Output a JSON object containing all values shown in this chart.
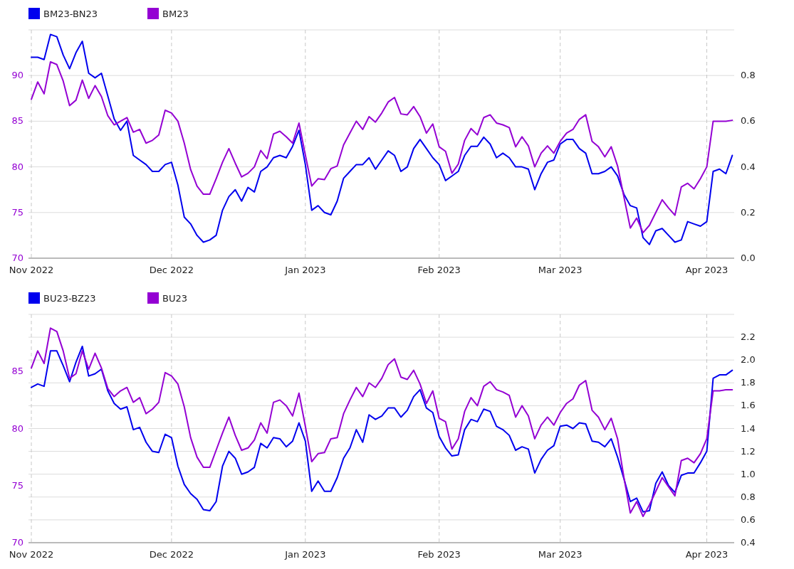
{
  "chart_data": [
    {
      "type": "line",
      "legend": "top left",
      "grid": true,
      "categories": [
        "Nov 2022",
        null,
        null,
        null,
        null,
        null,
        null,
        null,
        null,
        null,
        null,
        null,
        null,
        null,
        null,
        null,
        null,
        null,
        null,
        null,
        null,
        null,
        "Dec 2022",
        null,
        null,
        null,
        null,
        null,
        null,
        null,
        null,
        null,
        null,
        null,
        null,
        null,
        null,
        null,
        null,
        null,
        null,
        null,
        null,
        "Jan 2023",
        null,
        null,
        null,
        null,
        null,
        null,
        null,
        null,
        null,
        null,
        null,
        null,
        null,
        null,
        null,
        null,
        null,
        null,
        null,
        null,
        "Feb 2023",
        null,
        null,
        null,
        null,
        null,
        null,
        null,
        null,
        null,
        null,
        null,
        null,
        null,
        null,
        null,
        null,
        null,
        null,
        "Mar 2023",
        null,
        null,
        null,
        null,
        null,
        null,
        null,
        null,
        null,
        null,
        null,
        null,
        null,
        null,
        null,
        null,
        null,
        null,
        null,
        null,
        null,
        null,
        "Apr 2023",
        null,
        null,
        null,
        null
      ],
      "ylim": [
        70,
        95
      ],
      "yticks": [
        70,
        75,
        80,
        85,
        90
      ],
      "y2lim": [
        0,
        1
      ],
      "y2ticks": [
        {
          "value": 0,
          "label": "0.0"
        },
        {
          "value": 0.2,
          "label": "0.2"
        },
        {
          "value": 0.4,
          "label": "0.4"
        },
        {
          "value": 0.6,
          "label": "0.6"
        },
        {
          "value": 0.8,
          "label": "0.8"
        }
      ],
      "series": [
        {
          "name": "BM23-BN23",
          "color": "#0000ee",
          "axis": "y2",
          "values": [
            0.88,
            0.88,
            0.87,
            0.98,
            0.97,
            0.89,
            0.83,
            0.9,
            0.95,
            0.81,
            0.79,
            0.81,
            0.71,
            0.61,
            0.56,
            0.6,
            0.45,
            0.43,
            0.41,
            0.38,
            0.38,
            0.41,
            0.42,
            0.32,
            0.18,
            0.15,
            0.1,
            0.07,
            0.08,
            0.1,
            0.21,
            0.27,
            0.3,
            0.25,
            0.31,
            0.29,
            0.38,
            0.4,
            0.44,
            0.45,
            0.44,
            0.49,
            0.56,
            0.41,
            0.21,
            0.23,
            0.2,
            0.19,
            0.25,
            0.35,
            0.38,
            0.41,
            0.41,
            0.44,
            0.39,
            0.43,
            0.47,
            0.45,
            0.38,
            0.4,
            0.48,
            0.52,
            0.48,
            0.44,
            0.41,
            0.34,
            0.36,
            0.38,
            0.45,
            0.49,
            0.49,
            0.53,
            0.5,
            0.44,
            0.46,
            0.44,
            0.4,
            0.4,
            0.39,
            0.3,
            0.37,
            0.42,
            0.43,
            0.5,
            0.52,
            0.52,
            0.48,
            0.46,
            0.37,
            0.37,
            0.38,
            0.4,
            0.36,
            0.28,
            0.23,
            0.22,
            0.09,
            0.06,
            0.12,
            0.13,
            0.1,
            0.07,
            0.08,
            0.16,
            0.15,
            0.14,
            0.16,
            0.38,
            0.39,
            0.37,
            0.45
          ]
        },
        {
          "name": "BM23",
          "color": "#9400d3",
          "values": [
            87.4,
            89.3,
            88.0,
            91.5,
            91.2,
            89.4,
            86.7,
            87.3,
            89.5,
            87.5,
            88.9,
            87.7,
            85.6,
            84.6,
            85.0,
            85.4,
            83.8,
            84.1,
            82.6,
            82.9,
            83.5,
            86.2,
            85.9,
            85.0,
            82.6,
            79.7,
            77.9,
            77.0,
            77.0,
            78.7,
            80.5,
            82.0,
            80.4,
            78.9,
            79.3,
            80.0,
            81.8,
            80.9,
            83.6,
            83.9,
            83.3,
            82.6,
            84.8,
            81.3,
            77.9,
            78.7,
            78.6,
            79.8,
            80.1,
            82.4,
            83.7,
            85.0,
            84.1,
            85.5,
            84.9,
            85.9,
            87.1,
            87.6,
            85.8,
            85.7,
            86.6,
            85.5,
            83.7,
            84.7,
            82.2,
            81.7,
            79.3,
            80.3,
            82.9,
            84.2,
            83.5,
            85.4,
            85.7,
            84.8,
            84.6,
            84.3,
            82.2,
            83.3,
            82.3,
            80.0,
            81.5,
            82.3,
            81.5,
            82.8,
            83.7,
            84.1,
            85.2,
            85.7,
            82.8,
            82.2,
            81.1,
            82.2,
            80.1,
            76.7,
            73.3,
            74.4,
            72.8,
            73.6,
            75.0,
            76.4,
            75.5,
            74.7,
            77.8,
            78.2,
            77.6,
            78.7,
            80.0,
            85.0,
            85.0,
            85.0,
            85.1
          ]
        }
      ]
    },
    {
      "type": "line",
      "legend": "top left",
      "grid": true,
      "categories": [
        "Nov 2022",
        null,
        null,
        null,
        null,
        null,
        null,
        null,
        null,
        null,
        null,
        null,
        null,
        null,
        null,
        null,
        null,
        null,
        null,
        null,
        null,
        null,
        "Dec 2022",
        null,
        null,
        null,
        null,
        null,
        null,
        null,
        null,
        null,
        null,
        null,
        null,
        null,
        null,
        null,
        null,
        null,
        null,
        null,
        null,
        "Jan 2023",
        null,
        null,
        null,
        null,
        null,
        null,
        null,
        null,
        null,
        null,
        null,
        null,
        null,
        null,
        null,
        null,
        null,
        null,
        null,
        null,
        "Feb 2023",
        null,
        null,
        null,
        null,
        null,
        null,
        null,
        null,
        null,
        null,
        null,
        null,
        null,
        null,
        null,
        null,
        null,
        null,
        "Mar 2023",
        null,
        null,
        null,
        null,
        null,
        null,
        null,
        null,
        null,
        null,
        null,
        null,
        null,
        null,
        null,
        null,
        null,
        null,
        null,
        null,
        null,
        null,
        "Apr 2023",
        null,
        null,
        null,
        null
      ],
      "ylim": [
        70,
        90
      ],
      "yticks": [
        70,
        75,
        80,
        85
      ],
      "y2lim": [
        0.4,
        2.4
      ],
      "y2ticks": [
        {
          "value": 0.4,
          "label": "0.4"
        },
        {
          "value": 0.6,
          "label": "0.6"
        },
        {
          "value": 0.8,
          "label": "0.8"
        },
        {
          "value": 1,
          "label": "1.0"
        },
        {
          "value": 1.2,
          "label": "1.2"
        },
        {
          "value": 1.4,
          "label": "1.4"
        },
        {
          "value": 1.6,
          "label": "1.6"
        },
        {
          "value": 1.8,
          "label": "1.8"
        },
        {
          "value": 2,
          "label": "2.0"
        },
        {
          "value": 2.2,
          "label": "2.2"
        }
      ],
      "series": [
        {
          "name": "BU23-BZ23",
          "color": "#0000ee",
          "axis": "y2",
          "values": [
            1.76,
            1.79,
            1.77,
            2.08,
            2.08,
            1.95,
            1.81,
            1.98,
            2.12,
            1.86,
            1.88,
            1.92,
            1.73,
            1.62,
            1.57,
            1.59,
            1.39,
            1.41,
            1.28,
            1.2,
            1.19,
            1.35,
            1.32,
            1.07,
            0.91,
            0.83,
            0.78,
            0.69,
            0.68,
            0.76,
            1.07,
            1.2,
            1.14,
            1.0,
            1.02,
            1.06,
            1.27,
            1.23,
            1.32,
            1.31,
            1.24,
            1.29,
            1.45,
            1.29,
            0.85,
            0.94,
            0.85,
            0.85,
            0.97,
            1.14,
            1.23,
            1.39,
            1.28,
            1.52,
            1.48,
            1.51,
            1.58,
            1.58,
            1.5,
            1.56,
            1.68,
            1.74,
            1.58,
            1.54,
            1.33,
            1.23,
            1.16,
            1.17,
            1.39,
            1.48,
            1.46,
            1.57,
            1.55,
            1.42,
            1.39,
            1.34,
            1.21,
            1.24,
            1.22,
            1.01,
            1.13,
            1.21,
            1.25,
            1.42,
            1.43,
            1.4,
            1.45,
            1.44,
            1.29,
            1.28,
            1.24,
            1.31,
            1.15,
            0.96,
            0.76,
            0.79,
            0.67,
            0.68,
            0.92,
            1.02,
            0.9,
            0.84,
            0.99,
            1.01,
            1.01,
            1.1,
            1.2,
            1.84,
            1.87,
            1.87,
            1.91
          ]
        },
        {
          "name": "BU23",
          "color": "#9400d3",
          "values": [
            85.3,
            86.8,
            85.7,
            88.8,
            88.5,
            86.8,
            84.4,
            84.8,
            86.8,
            85.2,
            86.6,
            85.3,
            83.5,
            82.8,
            83.3,
            83.6,
            82.3,
            82.7,
            81.3,
            81.7,
            82.3,
            84.9,
            84.6,
            83.9,
            81.9,
            79.2,
            77.5,
            76.6,
            76.6,
            78.1,
            79.6,
            81.0,
            79.4,
            78.1,
            78.3,
            79.0,
            80.5,
            79.6,
            82.3,
            82.5,
            82.0,
            81.1,
            83.1,
            80.2,
            77.1,
            77.8,
            77.9,
            79.1,
            79.2,
            81.3,
            82.5,
            83.6,
            82.8,
            84.0,
            83.6,
            84.4,
            85.6,
            86.1,
            84.5,
            84.3,
            85.1,
            83.9,
            82.2,
            83.3,
            80.9,
            80.6,
            78.2,
            79.1,
            81.5,
            82.7,
            82.0,
            83.7,
            84.1,
            83.4,
            83.2,
            82.9,
            81.0,
            82.0,
            81.1,
            79.1,
            80.3,
            81.0,
            80.3,
            81.4,
            82.2,
            82.6,
            83.8,
            84.2,
            81.6,
            81.0,
            79.9,
            80.9,
            79.1,
            75.7,
            72.6,
            73.6,
            72.3,
            73.3,
            74.5,
            75.7,
            74.9,
            74.1,
            77.2,
            77.4,
            77.0,
            77.8,
            79.1,
            83.3,
            83.3,
            83.4,
            83.4
          ]
        }
      ]
    }
  ]
}
